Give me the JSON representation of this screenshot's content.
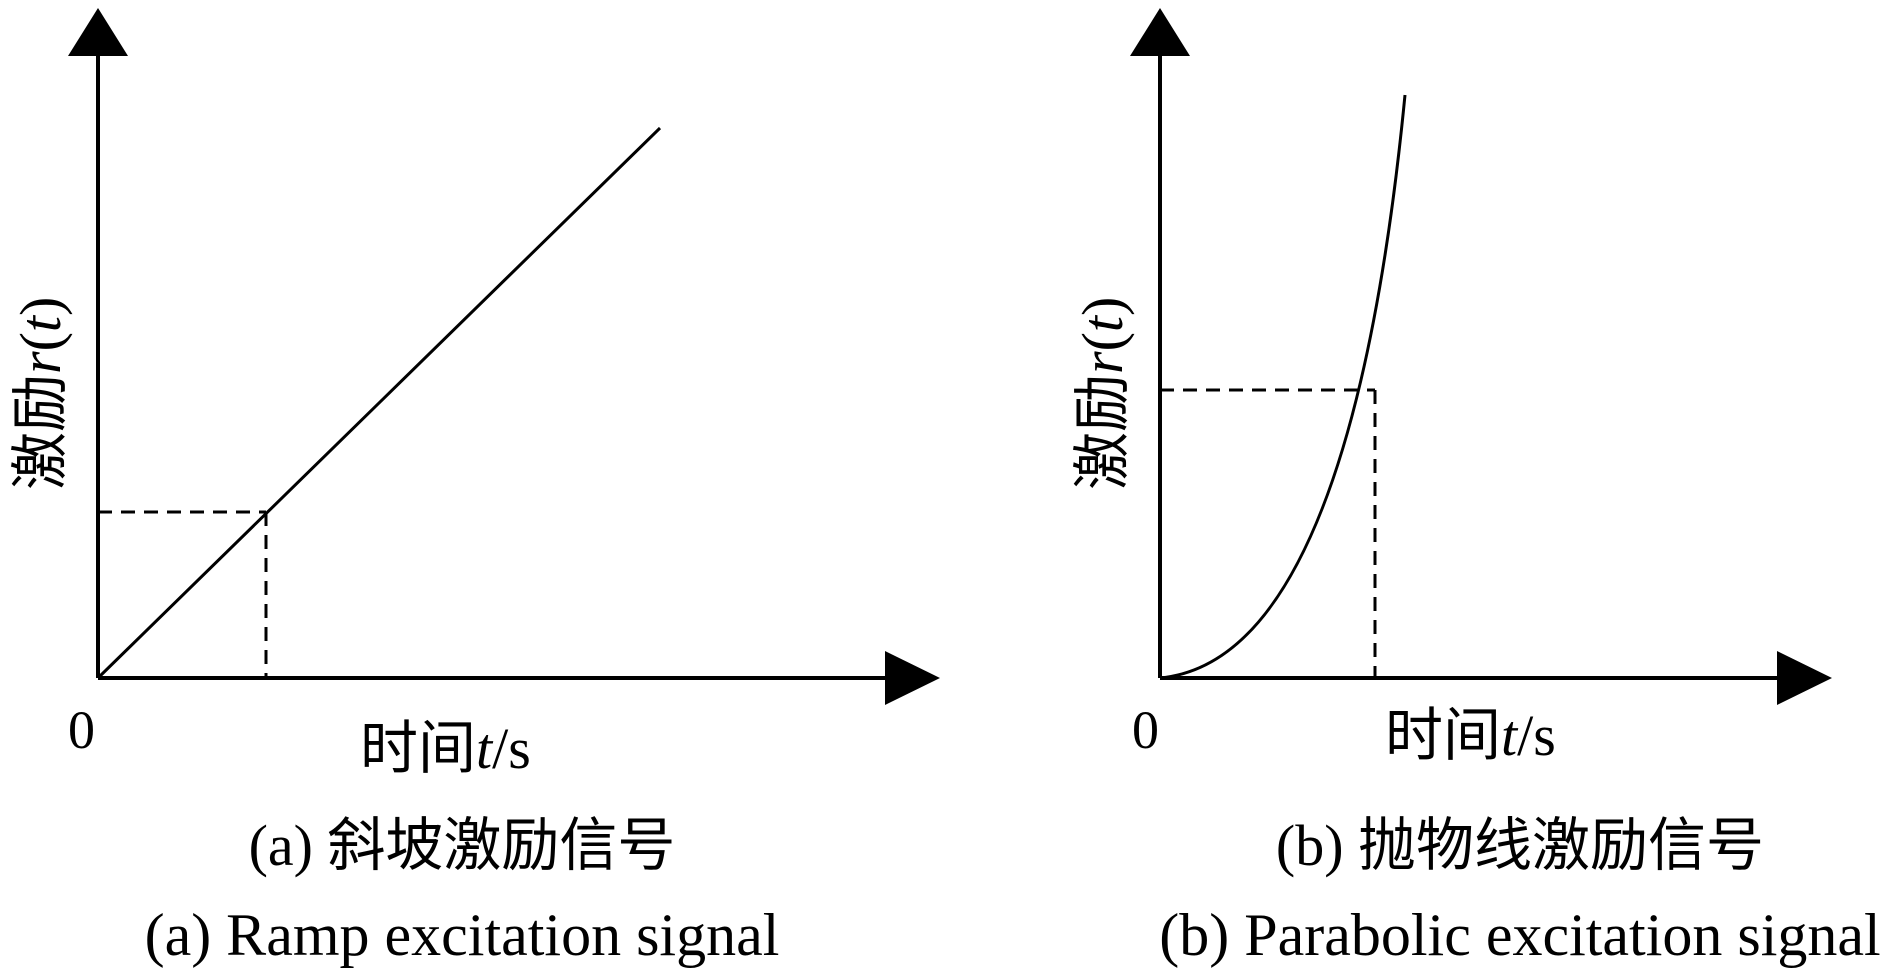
{
  "panels": [
    {
      "id": "a",
      "type": "ramp",
      "origin_label": "0",
      "x_label": {
        "prefix": "时间",
        "var": "t",
        "unit": "/s"
      },
      "y_label": {
        "prefix": "激励",
        "var": "r",
        "paren_open": "(",
        "arg": "t",
        "paren_close": ")"
      },
      "caption_cn": "(a) 斜坡激励信号",
      "caption_en": "(a) Ramp excitation signal"
    },
    {
      "id": "b",
      "type": "parabolic",
      "origin_label": "0",
      "x_label": {
        "prefix": "时间",
        "var": "t",
        "unit": "/s"
      },
      "y_label": {
        "prefix": "激励",
        "var": "r",
        "paren_open": "(",
        "arg": "t",
        "paren_close": ")"
      },
      "caption_cn": "(b) 抛物线激励信号",
      "caption_en": "(b) Parabolic excitation signal"
    }
  ]
}
